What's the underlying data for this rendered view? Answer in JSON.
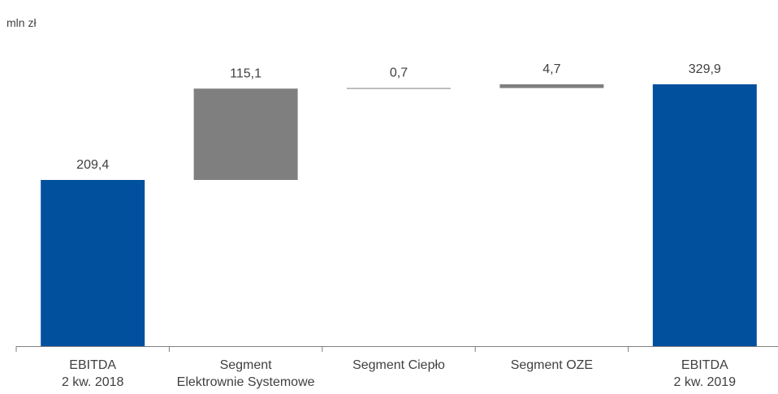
{
  "chart_data": {
    "type": "waterfall",
    "unit_label": "mln zł",
    "categories": [
      [
        "EBITDA",
        "2 kw. 2018"
      ],
      [
        "Segment",
        "Elektrownie Systemowe"
      ],
      [
        "Segment Ciepło"
      ],
      [
        "Segment OZE"
      ],
      [
        "EBITDA",
        "2 kw. 2019"
      ]
    ],
    "steps": [
      {
        "kind": "total",
        "value": 209.4,
        "label": "209,4"
      },
      {
        "kind": "delta",
        "value": 115.1,
        "label": "115,1"
      },
      {
        "kind": "delta",
        "value": 0.7,
        "label": "0,7"
      },
      {
        "kind": "delta",
        "value": 4.7,
        "label": "4,7"
      },
      {
        "kind": "total",
        "value": 329.9,
        "label": "329,9"
      }
    ],
    "ylim": [
      0,
      329.9
    ],
    "grid": false,
    "colors": {
      "total": "#00509E",
      "delta": "#7F7F7F",
      "axis": "#7F7F7F",
      "text": "#404040"
    }
  }
}
